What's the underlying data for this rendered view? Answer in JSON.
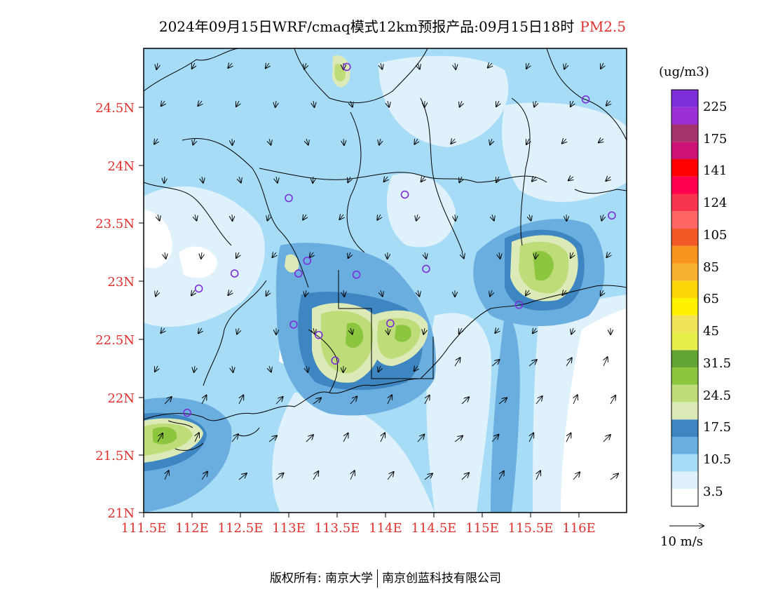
{
  "title": {
    "main": "2024年09月15日WRF/cmaq模式12km预报产品:09月15日18时",
    "variable": "PM2.5"
  },
  "colors": {
    "axis_label": "#e0302e",
    "border_lines": "#000000",
    "fill_levels": [
      "#ffffff",
      "#dff1fb",
      "#a6dcf5",
      "#6aaedf",
      "#3e86c1",
      "#dceab8",
      "#bedd78",
      "#8cc63f",
      "#63a534",
      "#e8ee4a",
      "#f2e45a",
      "#fff200",
      "#fdd60a",
      "#f8b131",
      "#f7941d",
      "#f15a24",
      "#ff6666",
      "#f7354f",
      "#ff004d",
      "#ff0000",
      "#cc1277",
      "#a3336a",
      "#9b30d6",
      "#7c2fd8"
    ]
  },
  "legend": {
    "unit": "(ug/m3)",
    "labels": [
      "225",
      "175",
      "141",
      "124",
      "105",
      "85",
      "65",
      "45",
      "31.5",
      "24.5",
      "17.5",
      "10.5",
      "3.5"
    ],
    "wind_ref": "10 m/s"
  },
  "axes": {
    "x_ticks": [
      "111.5E",
      "112E",
      "112.5E",
      "113E",
      "113.5E",
      "114E",
      "114.5E",
      "115E",
      "115.5E",
      "116E"
    ],
    "y_ticks": [
      "21N",
      "21.5N",
      "22N",
      "22.5N",
      "23N",
      "23.5N",
      "24N",
      "24.5N"
    ]
  },
  "copyright": {
    "left": "版权所有: 南京大学",
    "right": "南京创蓝科技有限公司"
  },
  "stations": [
    {
      "lon": 113.6,
      "lat": 24.84
    },
    {
      "lon": 116.07,
      "lat": 24.56
    },
    {
      "lon": 113.0,
      "lat": 23.71
    },
    {
      "lon": 114.2,
      "lat": 23.74
    },
    {
      "lon": 116.34,
      "lat": 23.56
    },
    {
      "lon": 112.44,
      "lat": 23.06
    },
    {
      "lon": 112.07,
      "lat": 22.93
    },
    {
      "lon": 113.1,
      "lat": 23.06
    },
    {
      "lon": 113.19,
      "lat": 23.17
    },
    {
      "lon": 113.7,
      "lat": 23.05
    },
    {
      "lon": 114.42,
      "lat": 23.1
    },
    {
      "lon": 115.38,
      "lat": 22.79
    },
    {
      "lon": 113.05,
      "lat": 22.62
    },
    {
      "lon": 113.31,
      "lat": 22.53
    },
    {
      "lon": 114.05,
      "lat": 22.63
    },
    {
      "lon": 113.48,
      "lat": 22.31
    },
    {
      "lon": 111.95,
      "lat": 21.86
    }
  ]
}
